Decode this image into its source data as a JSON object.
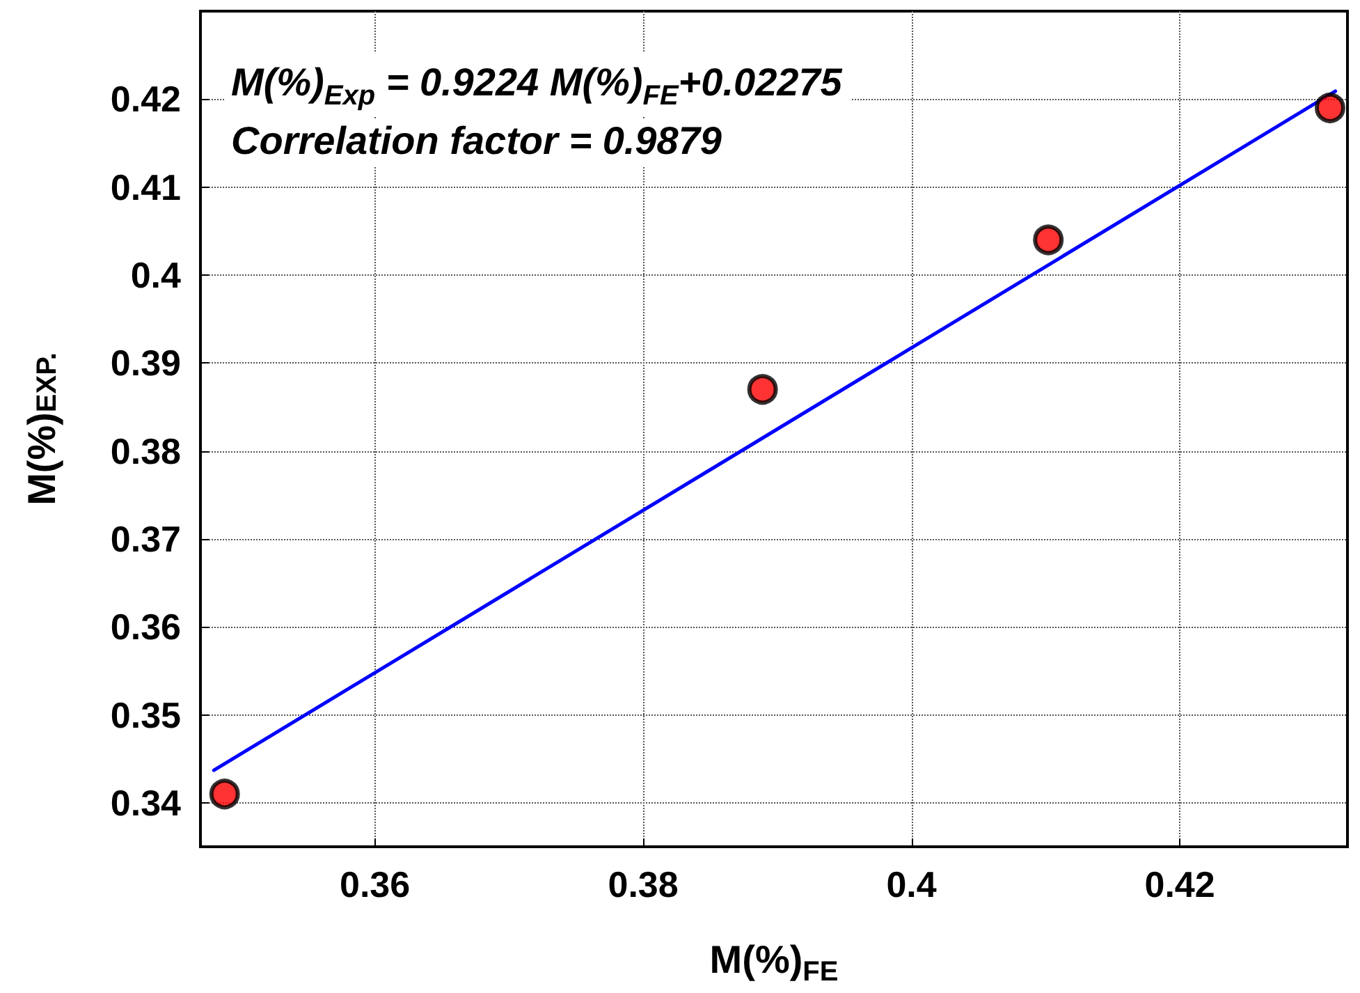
{
  "chart_data": {
    "type": "scatter",
    "xlabel": "M(%)$_{FE}$",
    "ylabel": "M(%)$_{EXP.}$",
    "annotations": [
      "M(%)$_{Exp}$ = 0.9224 M(%)$_{FE}$+0.02275",
      "Correlation factor = 0.9879"
    ],
    "series": [
      {
        "type": "line",
        "color": "#0000ff",
        "marker": "none",
        "line_style": "solid",
        "x": [
          0.348,
          0.4316
        ],
        "values": [
          0.3437,
          0.4209
        ]
      },
      {
        "color": "#ff0000",
        "marker": "circle",
        "x": [
          0.3488,
          0.3889,
          0.4102,
          0.4312
        ],
        "values": [
          0.341,
          0.387,
          0.404,
          0.419
        ]
      }
    ],
    "xlim": [
      0.347,
      0.4325
    ],
    "xticks": [
      0.36,
      0.38,
      0.4,
      0.42
    ],
    "ylim": [
      0.335,
      0.43
    ],
    "yticks": [
      0.34,
      0.35,
      0.36,
      0.37,
      0.38,
      0.39,
      0.4,
      0.41,
      0.42
    ],
    "grid": true
  }
}
